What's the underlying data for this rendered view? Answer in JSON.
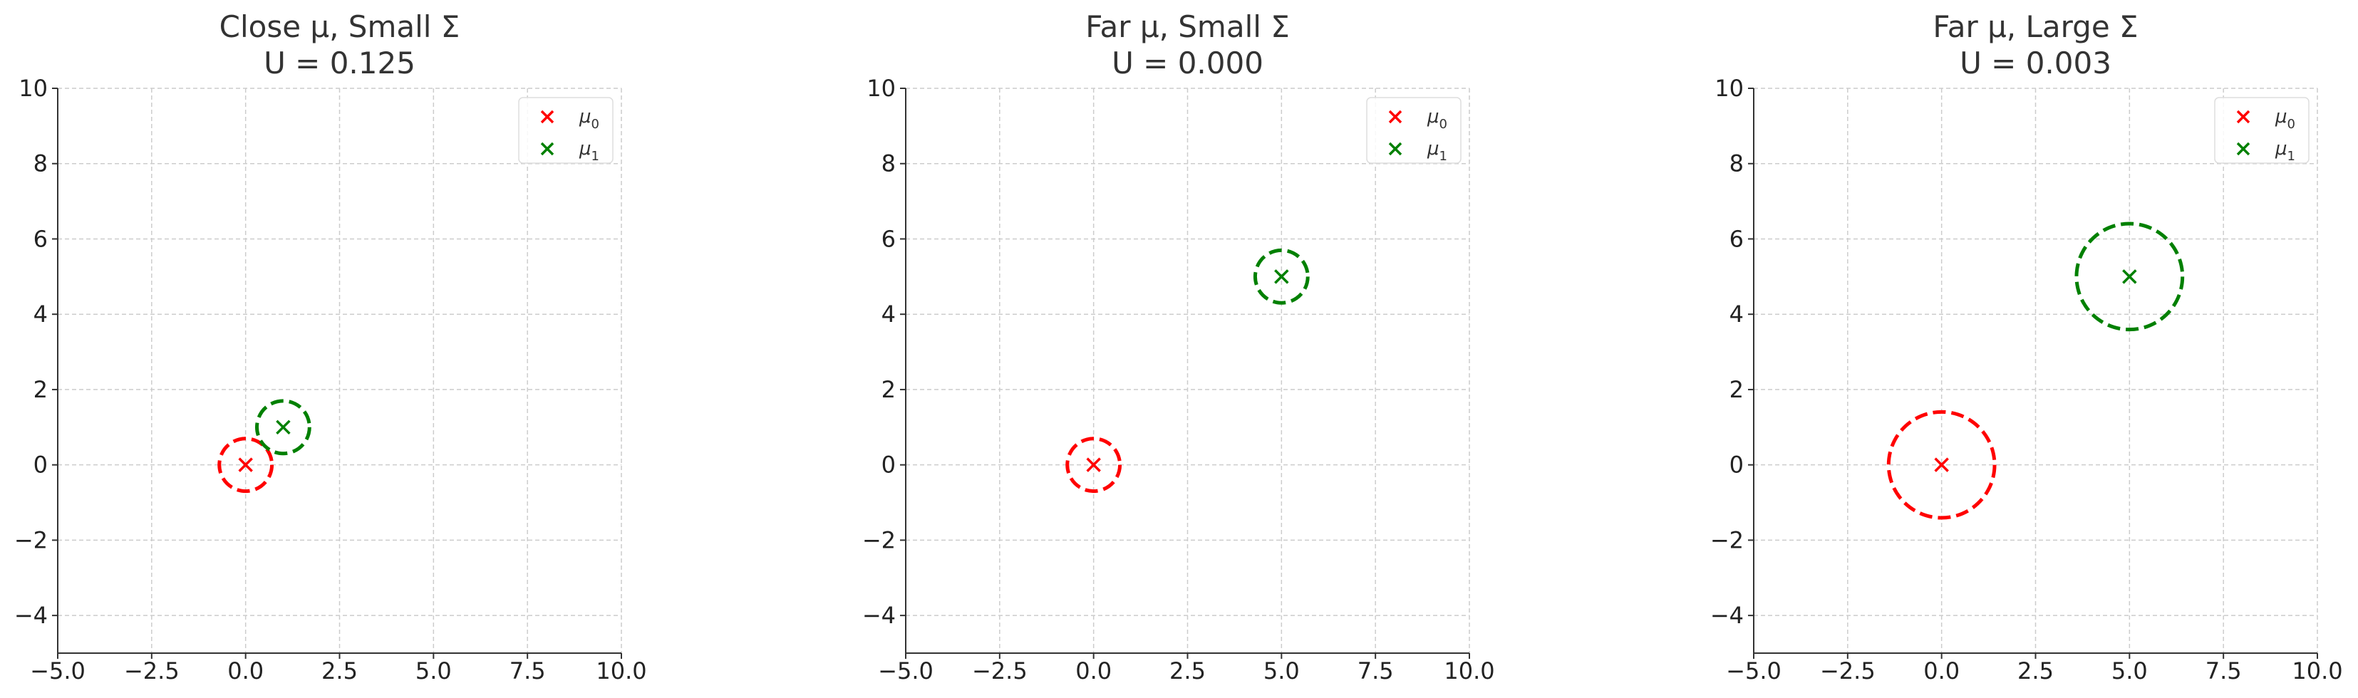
{
  "chart_data": [
    {
      "type": "scatter",
      "title_line1": "Close μ, Small Σ",
      "title_line2": "U = 0.125",
      "xlim": [
        -5,
        10
      ],
      "ylim": [
        -5,
        10
      ],
      "xticks": [
        -5,
        -2.5,
        0,
        2.5,
        5,
        7.5,
        10
      ],
      "yticks": [
        -4,
        -2,
        0,
        2,
        4,
        6,
        8,
        10
      ],
      "xtick_labels": [
        "−5.0",
        "−2.5",
        "0.0",
        "2.5",
        "5.0",
        "7.5",
        "10.0"
      ],
      "ytick_labels": [
        "−4",
        "−2",
        "0",
        "2",
        "4",
        "6",
        "8",
        "10"
      ],
      "grid": true,
      "legend_position": "top-right",
      "series": [
        {
          "name": "μ0",
          "color": "#ff0000",
          "x": 0,
          "y": 0,
          "radius": 0.7
        },
        {
          "name": "μ1",
          "color": "#008000",
          "x": 1,
          "y": 1,
          "radius": 0.7
        }
      ]
    },
    {
      "type": "scatter",
      "title_line1": "Far μ, Small Σ",
      "title_line2": "U = 0.000",
      "xlim": [
        -5,
        10
      ],
      "ylim": [
        -5,
        10
      ],
      "xticks": [
        -5,
        -2.5,
        0,
        2.5,
        5,
        7.5,
        10
      ],
      "yticks": [
        -4,
        -2,
        0,
        2,
        4,
        6,
        8,
        10
      ],
      "xtick_labels": [
        "−5.0",
        "−2.5",
        "0.0",
        "2.5",
        "5.0",
        "7.5",
        "10.0"
      ],
      "ytick_labels": [
        "−4",
        "−2",
        "0",
        "2",
        "4",
        "6",
        "8",
        "10"
      ],
      "grid": true,
      "legend_position": "top-right",
      "series": [
        {
          "name": "μ0",
          "color": "#ff0000",
          "x": 0,
          "y": 0,
          "radius": 0.7
        },
        {
          "name": "μ1",
          "color": "#008000",
          "x": 5,
          "y": 5,
          "radius": 0.7
        }
      ]
    },
    {
      "type": "scatter",
      "title_line1": "Far μ, Large Σ",
      "title_line2": "U = 0.003",
      "xlim": [
        -5,
        10
      ],
      "ylim": [
        -5,
        10
      ],
      "xticks": [
        -5,
        -2.5,
        0,
        2.5,
        5,
        7.5,
        10
      ],
      "yticks": [
        -4,
        -2,
        0,
        2,
        4,
        6,
        8,
        10
      ],
      "xtick_labels": [
        "−5.0",
        "−2.5",
        "0.0",
        "2.5",
        "5.0",
        "7.5",
        "10.0"
      ],
      "ytick_labels": [
        "−4",
        "−2",
        "0",
        "2",
        "4",
        "6",
        "8",
        "10"
      ],
      "grid": true,
      "legend_position": "top-right",
      "series": [
        {
          "name": "μ0",
          "color": "#ff0000",
          "x": 0,
          "y": 0,
          "radius": 1.41
        },
        {
          "name": "μ1",
          "color": "#008000",
          "x": 5,
          "y": 5,
          "radius": 1.41
        }
      ]
    }
  ]
}
